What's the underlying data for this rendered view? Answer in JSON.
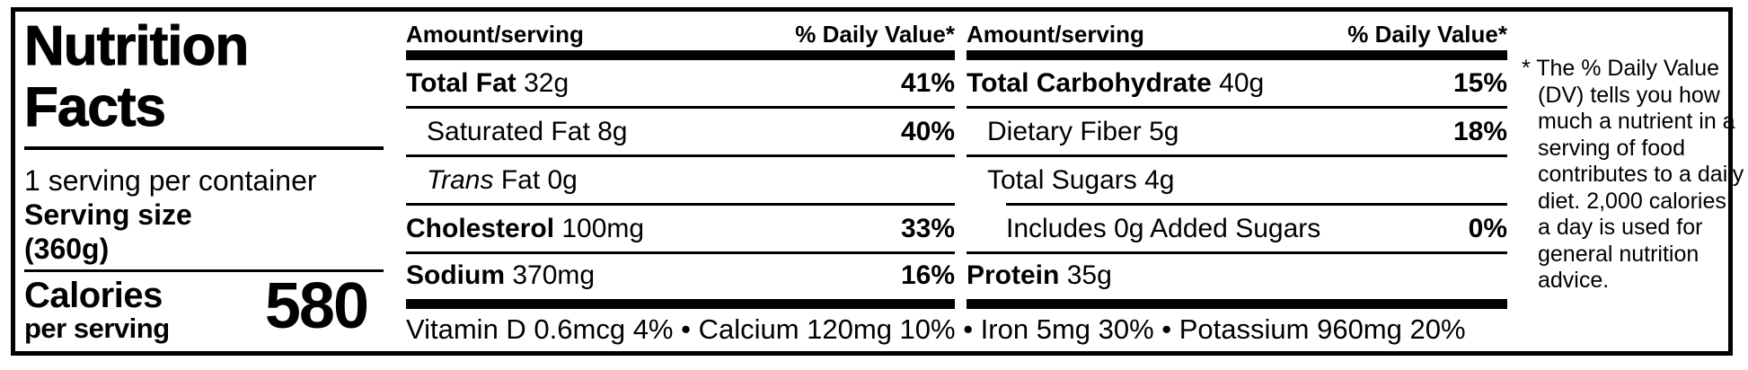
{
  "label": {
    "title": "Nutrition Facts",
    "servings_per_container": "1 serving per container",
    "serving_size_label": "Serving size",
    "serving_size_value": "(360g)",
    "calories_label": "Calories",
    "calories_sublabel": "per serving",
    "calories_value": "580"
  },
  "columns": [
    {
      "header": {
        "left": "Amount/serving",
        "right": "% Daily Value*"
      },
      "rows": [
        {
          "name": "Total Fat",
          "amount": "32g",
          "dv": "41%"
        },
        {
          "name": "Saturated Fat",
          "amount": "8g",
          "dv": "40%"
        },
        {
          "name": "Trans",
          "amount": "Fat 0g",
          "dv": ""
        },
        {
          "name": "Cholesterol",
          "amount": "100mg",
          "dv": "33%"
        },
        {
          "name": "Sodium",
          "amount": "370mg",
          "dv": "16%"
        }
      ]
    },
    {
      "header": {
        "left": "Amount/serving",
        "right": "% Daily Value*"
      },
      "rows": [
        {
          "name": "Total Carbohydrate",
          "amount": "40g",
          "dv": "15%"
        },
        {
          "name": "Dietary Fiber",
          "amount": "5g",
          "dv": "18%"
        },
        {
          "name": "Total Sugars",
          "amount": "4g",
          "dv": ""
        },
        {
          "name": "Includes 0g Added Sugars",
          "amount": "",
          "dv": "0%"
        },
        {
          "name": "Protein",
          "amount": "35g",
          "dv": ""
        }
      ]
    }
  ],
  "micronutrients": "Vitamin D 0.6mcg 4% • Calcium 120mg 10% • Iron 5mg 30% • Potassium 960mg 20%",
  "footnote": "* The % Daily Value (DV) tells you how much a nutrient in a serving of food contributes to a daily diet. 2,000 calories a day is used for general nutrition advice.",
  "colors": {
    "text": "#000000",
    "background": "#ffffff"
  }
}
